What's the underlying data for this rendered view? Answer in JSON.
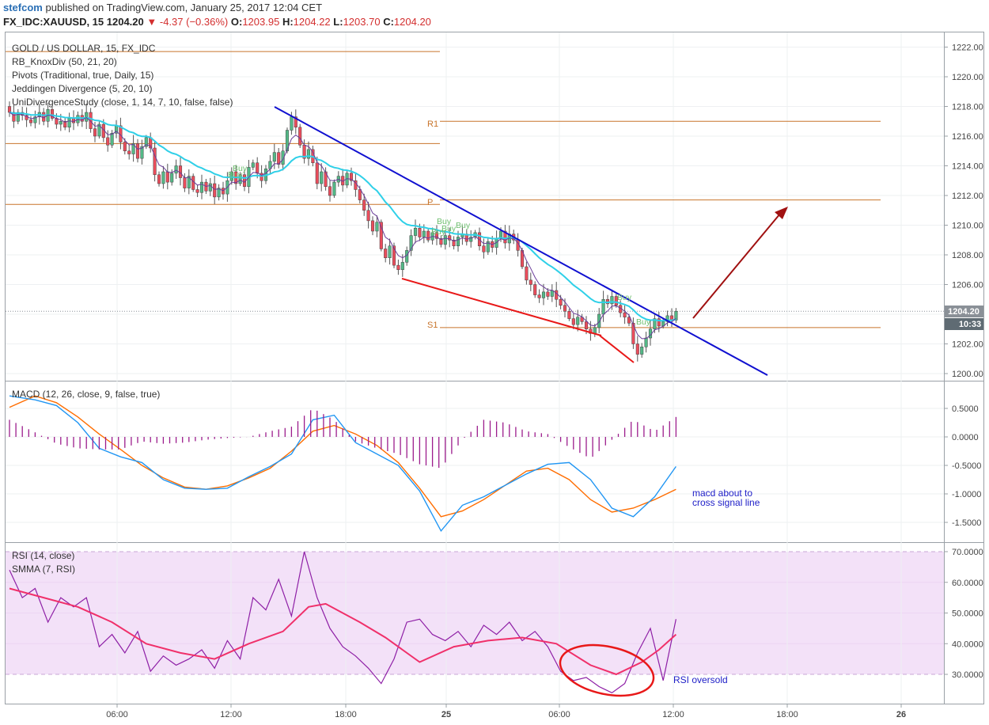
{
  "header": {
    "author": "stefcom",
    "published_text": "published on TradingView.com, January 25, 2017 12:04 CET",
    "symbol": "FX_IDC:XAUUSD, 15",
    "last": "1204.20",
    "change": "-4.37 (−0.36%)",
    "open_label": "O:",
    "open": "1203.95",
    "high_label": "H:",
    "high": "1204.22",
    "low_label": "L:",
    "low": "1203.70",
    "close_label": "C:",
    "close": "1204.20"
  },
  "price_pane": {
    "legend": [
      "GOLD / US DOLLAR, 15, FX_IDC",
      "RB_KnoxDiv (50, 21, 20)",
      "Pivots (Traditional, true, Daily, 15)",
      "Jeddingen Divergence (5, 20, 10)",
      "UniDivergenceStudy (close, 1, 14, 7, 10, false, false)"
    ],
    "pivot_labels": {
      "r1": "R1",
      "p": "P",
      "s1": "S1"
    },
    "buy_labels": [
      "Buy",
      "Buy",
      "Buy",
      "Buy",
      "Buy",
      "Buy",
      "Buy",
      "Buy"
    ],
    "price_tag": "1204.20",
    "time_tag": "10:33"
  },
  "macd_pane": {
    "legend": "MACD (12, 26, close, 9, false, true)",
    "annotation": [
      "macd about to",
      "cross signal line"
    ]
  },
  "rsi_pane": {
    "legend": [
      "RSI (14, close)",
      "SMMA (7, RSI)"
    ],
    "annotation": "RSI oversold"
  },
  "colors": {
    "candle_up": "#53b987",
    "candle_down": "#eb4d5c",
    "ma": "#2fd0e8",
    "pivot": "#c8742b",
    "trend_blue": "#1010d0",
    "trend_red": "#e81818",
    "arrow": "#a01010",
    "macd": "#2196f3",
    "signal": "#ff6d00",
    "histogram": "#9c1c8c",
    "rsi": "#8e1fa6",
    "smma": "#f0306a",
    "rsi_band": "#f3e1f8"
  },
  "chart_data": [
    {
      "type": "candlestick",
      "title": "GOLD / US DOLLAR, 15, FX_IDC",
      "x_tick_labels": [
        "06:00",
        "12:00",
        "18:00",
        "25",
        "06:00",
        "12:00",
        "18:00",
        "26"
      ],
      "y_ticks": [
        1200,
        1202,
        1204,
        1206,
        1208,
        1210,
        1212,
        1214,
        1216,
        1218,
        1220,
        1222
      ],
      "y_tick_labels": [
        "1200.00",
        "1202.00",
        "1204.00",
        "1206.00",
        "1208.00",
        "1210.00",
        "1212.00",
        "1214.00",
        "1216.00",
        "1218.00",
        "1220.00",
        "1222.00"
      ],
      "ylim": [
        1199.6,
        1223.2
      ],
      "pivots": {
        "r1": 1217.0,
        "p": 1211.7,
        "s1": 1203.1
      },
      "prev_pivots": [
        1221.7,
        1215.5,
        1211.4
      ],
      "last_price": 1204.2,
      "close_path": [
        1218.0,
        1217.6,
        1217.0,
        1217.6,
        1217.4,
        1217.1,
        1216.9,
        1217.3,
        1217.6,
        1217.0,
        1217.8,
        1217.2,
        1216.8,
        1217.0,
        1216.6,
        1217.2,
        1216.9,
        1217.4,
        1217.0,
        1217.6,
        1216.5,
        1216.0,
        1216.8,
        1215.9,
        1215.4,
        1216.2,
        1216.7,
        1215.6,
        1215.0,
        1214.8,
        1215.5,
        1214.5,
        1215.3,
        1215.9,
        1215.2,
        1213.4,
        1212.8,
        1213.6,
        1212.9,
        1213.5,
        1214.0,
        1213.2,
        1212.5,
        1213.3,
        1212.4,
        1212.2,
        1212.9,
        1212.3,
        1212.8,
        1211.9,
        1212.5,
        1212.1,
        1213.0,
        1213.6,
        1212.8,
        1213.4,
        1212.6,
        1213.9,
        1214.2,
        1213.5,
        1213.0,
        1213.8,
        1214.3,
        1214.9,
        1214.1,
        1215.0,
        1216.4,
        1217.3,
        1216.6,
        1215.4,
        1214.5,
        1215.1,
        1214.2,
        1212.8,
        1213.6,
        1212.6,
        1212.0,
        1212.9,
        1213.3,
        1212.7,
        1213.5,
        1213.0,
        1212.4,
        1211.7,
        1211.0,
        1210.3,
        1209.6,
        1210.2,
        1208.4,
        1207.8,
        1208.6,
        1207.3,
        1207.0,
        1207.5,
        1208.3,
        1209.3,
        1209.8,
        1209.2,
        1209.6,
        1209.0,
        1209.5,
        1209.1,
        1208.7,
        1209.3,
        1209.0,
        1208.6,
        1209.2,
        1209.4,
        1208.9,
        1209.2,
        1209.5,
        1208.6,
        1208.2,
        1208.9,
        1208.5,
        1209.1,
        1209.6,
        1208.8,
        1209.4,
        1209.0,
        1208.3,
        1207.2,
        1206.3,
        1206.0,
        1205.3,
        1205.1,
        1205.5,
        1205.2,
        1205.6,
        1205.0,
        1204.6,
        1204.2,
        1203.7,
        1203.3,
        1203.8,
        1203.5,
        1203.0,
        1202.7,
        1203.1,
        1204.0,
        1205.0,
        1204.7,
        1205.2,
        1204.6,
        1204.1,
        1203.8,
        1203.4,
        1202.0,
        1201.3,
        1201.8,
        1202.4,
        1203.0,
        1203.7,
        1203.2,
        1203.5,
        1203.9,
        1203.6,
        1204.2
      ]
    },
    {
      "type": "line",
      "title": "MACD (12, 26, close, 9, false, true)",
      "y_ticks": [
        -1.5,
        -1.0,
        -0.5,
        0.0,
        0.5
      ],
      "y_tick_labels": [
        "-1.5000",
        "-1.0000",
        "-0.5000",
        "0.0000",
        "0.5000"
      ],
      "ylim": [
        -1.75,
        0.75
      ],
      "series": [
        {
          "name": "MACD",
          "x": [
            0,
            6,
            11,
            16,
            21,
            26,
            31,
            36,
            41,
            46,
            51,
            56,
            61,
            66,
            71,
            76,
            81,
            86,
            91,
            96,
            101,
            106,
            111,
            116,
            121,
            126,
            131,
            136,
            141,
            146,
            151,
            156
          ],
          "values": [
            0.72,
            0.65,
            0.55,
            0.25,
            -0.2,
            -0.35,
            -0.45,
            -0.75,
            -0.9,
            -0.92,
            -0.9,
            -0.7,
            -0.52,
            -0.3,
            0.3,
            0.38,
            -0.1,
            -0.3,
            -0.5,
            -0.95,
            -1.65,
            -1.2,
            -1.05,
            -0.85,
            -0.65,
            -0.48,
            -0.45,
            -0.75,
            -1.25,
            -1.4,
            -1.05,
            -0.52
          ]
        },
        {
          "name": "Signal",
          "x": [
            0,
            6,
            11,
            16,
            21,
            26,
            31,
            36,
            41,
            46,
            51,
            56,
            61,
            66,
            71,
            76,
            81,
            86,
            91,
            96,
            101,
            106,
            111,
            116,
            121,
            126,
            131,
            136,
            141,
            146,
            151,
            156
          ],
          "values": [
            0.52,
            0.72,
            0.6,
            0.35,
            0.05,
            -0.22,
            -0.5,
            -0.72,
            -0.88,
            -0.92,
            -0.86,
            -0.72,
            -0.55,
            -0.25,
            0.1,
            0.2,
            0.05,
            -0.15,
            -0.45,
            -0.9,
            -1.4,
            -1.3,
            -1.1,
            -0.85,
            -0.6,
            -0.55,
            -0.75,
            -1.1,
            -1.32,
            -1.25,
            -1.1,
            -0.92
          ]
        },
        {
          "name": "Histogram",
          "x": [
            0,
            6,
            11,
            16,
            21,
            26,
            31,
            36,
            41,
            46,
            51,
            56,
            61,
            66,
            71,
            76,
            81,
            86,
            91,
            96,
            101,
            106,
            111,
            116,
            121,
            126,
            131,
            136,
            141,
            146,
            151,
            156
          ],
          "values": [
            0.3,
            0.08,
            -0.12,
            -0.2,
            -0.22,
            -0.22,
            -0.08,
            -0.12,
            -0.1,
            -0.05,
            -0.02,
            0.0,
            0.1,
            0.18,
            0.5,
            0.3,
            -0.08,
            -0.2,
            -0.3,
            -0.48,
            -0.55,
            -0.05,
            0.3,
            0.25,
            0.1,
            0.05,
            -0.18,
            -0.38,
            -0.05,
            0.3,
            0.1,
            0.35
          ]
        }
      ]
    },
    {
      "type": "line",
      "title": "RSI (14, close)",
      "y_ticks": [
        30,
        40,
        50,
        60,
        70
      ],
      "y_tick_labels": [
        "30.0000",
        "40.0000",
        "50.0000",
        "60.0000",
        "70.0000"
      ],
      "ylim": [
        21.0,
        71.5
      ],
      "bands": [
        30,
        70
      ],
      "series": [
        {
          "name": "RSI",
          "x": [
            0,
            3,
            6,
            9,
            12,
            15,
            18,
            21,
            24,
            27,
            30,
            33,
            36,
            39,
            42,
            45,
            48,
            51,
            54,
            57,
            60,
            63,
            66,
            69,
            72,
            75,
            78,
            81,
            84,
            87,
            90,
            93,
            96,
            99,
            102,
            105,
            108,
            111,
            114,
            117,
            120,
            123,
            126,
            129,
            132,
            135,
            138,
            141,
            144,
            147,
            150,
            153,
            156
          ],
          "values": [
            64,
            55,
            58,
            47,
            55,
            52,
            55,
            39,
            43,
            37,
            44,
            31,
            36,
            33,
            35,
            38,
            32,
            41,
            35,
            55,
            51,
            61,
            49,
            70,
            55,
            45,
            39,
            36,
            32,
            27,
            35,
            47,
            48,
            43,
            41,
            44,
            39,
            46,
            43,
            47,
            41,
            44,
            39,
            31,
            28,
            29,
            26,
            24,
            27,
            37,
            45,
            28,
            48
          ]
        },
        {
          "name": "SMMA",
          "x": [
            0,
            8,
            16,
            24,
            32,
            40,
            48,
            56,
            64,
            70,
            74,
            82,
            88,
            96,
            104,
            112,
            120,
            128,
            136,
            142,
            148,
            152,
            156
          ],
          "values": [
            58,
            55,
            52,
            47,
            40,
            37,
            35,
            40,
            44,
            52,
            53,
            47,
            42,
            34,
            39,
            41,
            42,
            40,
            33,
            30,
            34,
            38,
            43
          ]
        }
      ]
    }
  ]
}
